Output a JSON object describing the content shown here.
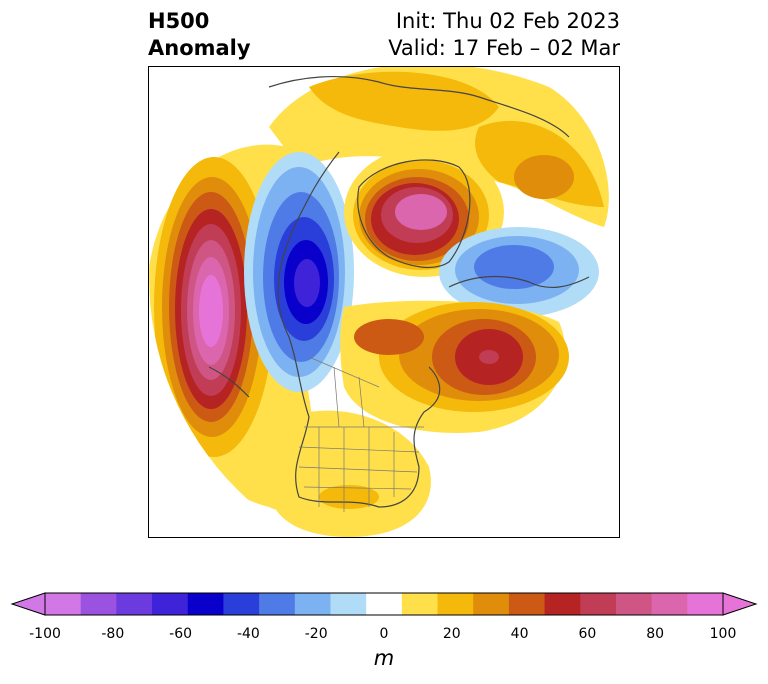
{
  "title": {
    "left_line1": "H500",
    "left_line2": "Anomaly",
    "init": "Init: Thu 02 Feb 2023",
    "valid": "Valid: 17 Feb – 02 Mar"
  },
  "map": {
    "projection": "polar stereographic",
    "region": "North America / North Pacific / North Atlantic",
    "features": [
      {
        "name": "North Pacific ridge",
        "sign": "positive",
        "peak_m": 100
      },
      {
        "name": "Western Canada trough",
        "sign": "negative",
        "peak_m": -60
      },
      {
        "name": "Greenland ridge",
        "sign": "positive",
        "peak_m": 90
      },
      {
        "name": "Labrador Sea ridge",
        "sign": "positive",
        "peak_m": 60
      },
      {
        "name": "Northern Europe / Scandinavia trough",
        "sign": "negative",
        "peak_m": -40
      },
      {
        "name": "Southern US ridge",
        "sign": "positive",
        "peak_m": 20
      }
    ]
  },
  "colorbar": {
    "levels": [
      -100,
      -90,
      -80,
      -70,
      -60,
      -50,
      -40,
      -30,
      -20,
      -10,
      10,
      20,
      30,
      40,
      50,
      60,
      70,
      80,
      90,
      100
    ],
    "colors": [
      "#d178e6",
      "#9b52e0",
      "#6b3be0",
      "#3e23d8",
      "#0a00cc",
      "#2a3fd9",
      "#4f7be6",
      "#7db2f2",
      "#b0dcf8",
      "#ffffff",
      "#ffe04a",
      "#f4b90a",
      "#e08d0c",
      "#cc5a14",
      "#b52323",
      "#c13c55",
      "#cf5585",
      "#db66ae",
      "#e674d8"
    ],
    "tick_labels": [
      "-100",
      "-80",
      "-60",
      "-40",
      "-20",
      "0",
      "20",
      "40",
      "60",
      "80",
      "100"
    ],
    "units": "m",
    "extend": "both"
  }
}
